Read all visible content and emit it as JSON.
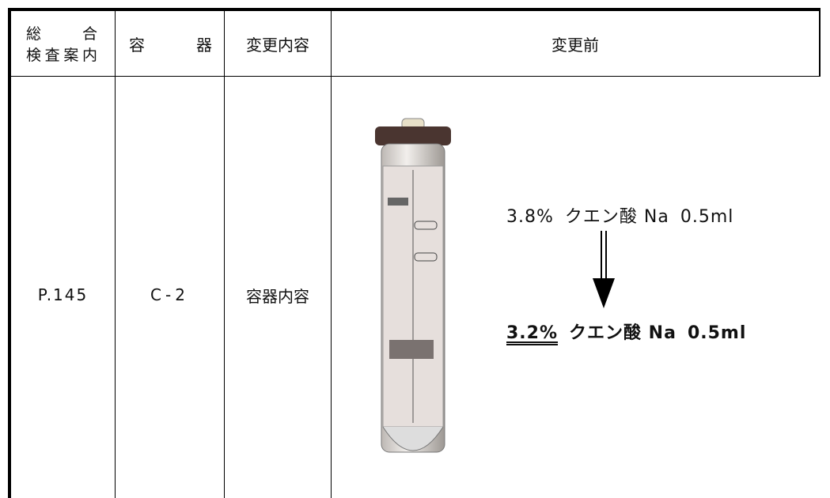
{
  "table": {
    "header": [
      [
        "総 合",
        "検査案内"
      ],
      [
        "容 器"
      ],
      [
        "変更内容"
      ],
      [
        "変更前"
      ]
    ],
    "rows": [
      [
        "P.145",
        "C-2",
        "容器内容"
      ]
    ],
    "change": {
      "before": {
        "concentration": "3.8%",
        "substance": "クエン酸 Na",
        "volume": "0.5ml"
      },
      "after": {
        "concentration": "3.2%",
        "substance": "クエン酸 Na",
        "volume": "0.5ml"
      }
    }
  }
}
